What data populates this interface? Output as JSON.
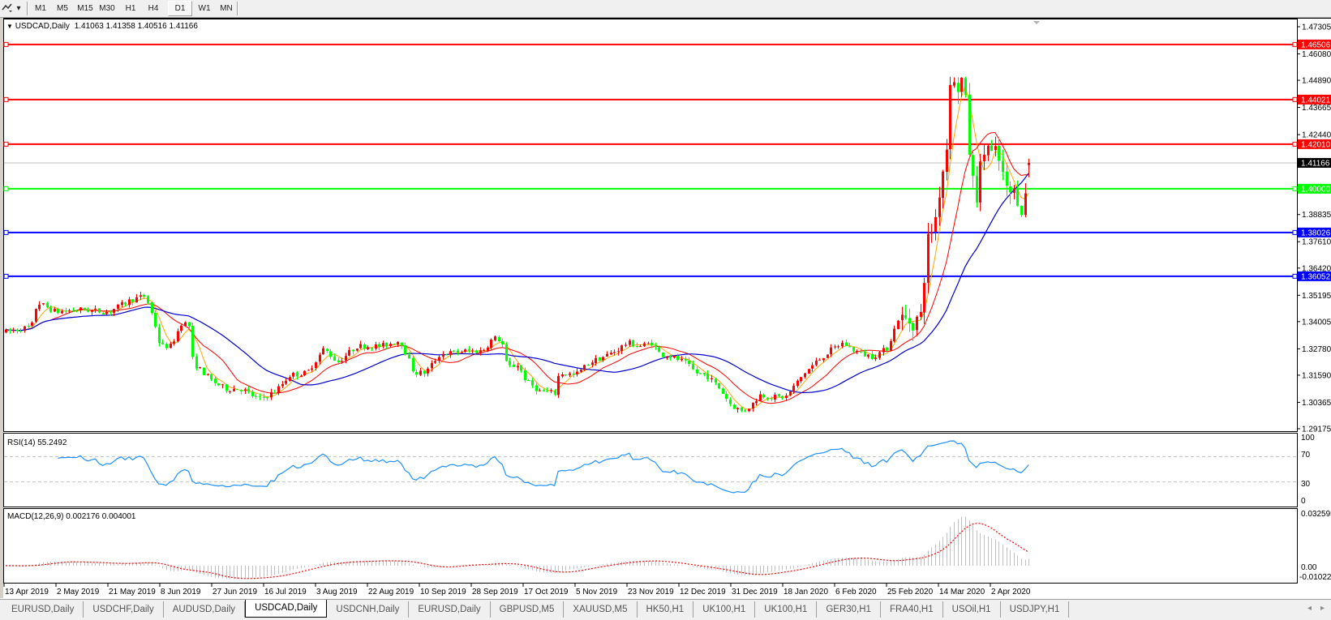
{
  "toolbar": {
    "chart_icon": "chart-tools-icon",
    "timeframes": [
      "M1",
      "M5",
      "M15",
      "M30",
      "H1",
      "H4",
      "D1",
      "W1",
      "MN"
    ],
    "active_timeframe": "D1"
  },
  "header": {
    "symbol": "USDCAD,Daily",
    "ohlc": "1.41063 1.41358 1.40516 1.41166"
  },
  "rsi": {
    "label": "RSI(14) 55.2492",
    "axis": [
      "100",
      "70",
      "30",
      "0"
    ],
    "line_color": "#1e90ff"
  },
  "macd": {
    "label": "MACD(12,26,9) 0.002176 0.004001",
    "axis_top": "0.032595",
    "axis_zero": "0.00",
    "axis_bottom": "-0.010227",
    "range": [
      -0.010227,
      0.032595
    ]
  },
  "colors": {
    "bull": "#ff0000",
    "bear": "#00ff00",
    "ma_fast": "#ffa500",
    "ma_mid": "#ff0000",
    "ma_slow": "#0000cc",
    "background": "#ffffff"
  },
  "chart_data": {
    "type": "candlestick",
    "symbol": "USDCAD",
    "timeframe": "Daily",
    "last_bar": {
      "open": 1.41063,
      "high": 1.41358,
      "low": 1.40516,
      "close": 1.41166
    },
    "ylim": [
      1.29175,
      1.47305
    ],
    "y_ticks": [
      "1.47305",
      "1.46080",
      "1.44890",
      "1.43665",
      "1.42440",
      "1.38835",
      "1.37610",
      "1.36420",
      "1.35195",
      "1.34005",
      "1.32780",
      "1.31590",
      "1.30365",
      "1.29175"
    ],
    "x_ticks": [
      "13 Apr 2019",
      "2 May 2019",
      "21 May 2019",
      "8 Jun 2019",
      "27 Jun 2019",
      "16 Jul 2019",
      "3 Aug 2019",
      "22 Aug 2019",
      "10 Sep 2019",
      "28 Sep 2019",
      "17 Oct 2019",
      "5 Nov 2019",
      "23 Nov 2019",
      "12 Dec 2019",
      "31 Dec 2019",
      "18 Jan 2020",
      "6 Feb 2020",
      "25 Feb 2020",
      "14 Mar 2020",
      "2 Apr 2020"
    ],
    "current_price": {
      "value": 1.41166,
      "label": "1.41166"
    },
    "levels": [
      {
        "value": 1.46506,
        "label": "1.46506",
        "color": "#ff0000"
      },
      {
        "value": 1.44021,
        "label": "1.44021",
        "color": "#ff0000"
      },
      {
        "value": 1.4201,
        "label": "1.42010",
        "color": "#ff0000"
      },
      {
        "value": 1.4,
        "label": "1.40000",
        "color": "#00ff00"
      },
      {
        "value": 1.38026,
        "label": "1.38026",
        "color": "#0000ff"
      },
      {
        "value": 1.36052,
        "label": "1.36052",
        "color": "#0000ff"
      }
    ],
    "close_path": [
      [
        "13 Apr 2019",
        1.3353
      ],
      [
        "23 Apr 2019",
        1.3378
      ],
      [
        "25 Apr 2019",
        1.3488
      ],
      [
        "2 May 2019",
        1.3444
      ],
      [
        "11 May 2019",
        1.3455
      ],
      [
        "21 May 2019",
        1.3444
      ],
      [
        "29 May 2019",
        1.3499
      ],
      [
        "3 Jun 2019",
        1.3517
      ],
      [
        "6 Jun 2019",
        1.34
      ],
      [
        "8 Jun 2019",
        1.329
      ],
      [
        "12 Jun 2019",
        1.329
      ],
      [
        "16 Jun 2019",
        1.34
      ],
      [
        "19 Jun 2019",
        1.3378
      ],
      [
        "20 Jun 2019",
        1.3217
      ],
      [
        "27 Jun 2019",
        1.3133
      ],
      [
        "2 Jul 2019",
        1.3097
      ],
      [
        "8 Jul 2019",
        1.3097
      ],
      [
        "14 Jul 2019",
        1.3049
      ],
      [
        "20 Jul 2019",
        1.3086
      ],
      [
        "25 Jul 2019",
        1.3159
      ],
      [
        "31 Jul 2019",
        1.317
      ],
      [
        "6 Aug 2019",
        1.3279
      ],
      [
        "11 Aug 2019",
        1.3217
      ],
      [
        "18 Aug 2019",
        1.329
      ],
      [
        "27 Aug 2019",
        1.329
      ],
      [
        "3 Sep 2019",
        1.3316
      ],
      [
        "8 Sep 2019",
        1.317
      ],
      [
        "12 Sep 2019",
        1.317
      ],
      [
        "17 Sep 2019",
        1.3254
      ],
      [
        "26 Sep 2019",
        1.3268
      ],
      [
        "2 Oct 2019",
        1.3268
      ],
      [
        "6 Oct 2019",
        1.3327
      ],
      [
        "9 Oct 2019",
        1.3316
      ],
      [
        "11 Oct 2019",
        1.3195
      ],
      [
        "15 Oct 2019",
        1.3206
      ],
      [
        "18 Oct 2019",
        1.3133
      ],
      [
        "23 Oct 2019",
        1.3086
      ],
      [
        "29 Oct 2019",
        1.3078
      ],
      [
        "30 Oct 2019",
        1.317
      ],
      [
        "5 Nov 2019",
        1.3159
      ],
      [
        "10 Nov 2019",
        1.3217
      ],
      [
        "15 Nov 2019",
        1.3243
      ],
      [
        "19 Nov 2019",
        1.3268
      ],
      [
        "23 Nov 2019",
        1.3305
      ],
      [
        "28 Nov 2019",
        1.329
      ],
      [
        "2 Dec 2019",
        1.3305
      ],
      [
        "5 Dec 2019",
        1.3254
      ],
      [
        "9 Dec 2019",
        1.3243
      ],
      [
        "14 Dec 2019",
        1.3217
      ],
      [
        "18 Dec 2019",
        1.317
      ],
      [
        "22 Dec 2019",
        1.3159
      ],
      [
        "27 Dec 2019",
        1.3097
      ],
      [
        "31 Dec 2019",
        1.3024
      ],
      [
        "4 Jan 2020",
        1.2994
      ],
      [
        "7 Jan 2020",
        1.3024
      ],
      [
        "10 Jan 2020",
        1.3071
      ],
      [
        "14 Jan 2020",
        1.306
      ],
      [
        "19 Jan 2020",
        1.306
      ],
      [
        "22 Jan 2020",
        1.3108
      ],
      [
        "26 Jan 2020",
        1.317
      ],
      [
        "30 Jan 2020",
        1.3217
      ],
      [
        "4 Feb 2020",
        1.3268
      ],
      [
        "9 Feb 2020",
        1.3305
      ],
      [
        "12 Feb 2020",
        1.3279
      ],
      [
        "16 Feb 2020",
        1.3254
      ],
      [
        "20 Feb 2020",
        1.3243
      ],
      [
        "25 Feb 2020",
        1.3279
      ],
      [
        "27 Feb 2020",
        1.3342
      ],
      [
        "29 Feb 2020",
        1.3415
      ],
      [
        "5 Mar 2020",
        1.34
      ],
      [
        "8 Mar 2020",
        1.3425
      ],
      [
        "9 Mar 2020",
        1.3608
      ],
      [
        "10 Mar 2020",
        1.3755
      ],
      [
        "13 Mar 2020",
        1.3875
      ],
      [
        "14 Mar 2020",
        1.3974
      ],
      [
        "17 Mar 2020",
        1.4193
      ],
      [
        "18 Mar 2020",
        1.4522
      ],
      [
        "19 Mar 2020",
        1.446
      ],
      [
        "22 Mar 2020",
        1.446
      ],
      [
        "23 Mar 2020",
        1.4533
      ],
      [
        "24 Mar 2020",
        1.4339
      ],
      [
        "26 Mar 2020",
        1.4047
      ],
      [
        "28 Mar 2020",
        1.3974
      ],
      [
        "30 Mar 2020",
        1.4157
      ],
      [
        "1 Apr 2020",
        1.4193
      ],
      [
        "3 Apr 2020",
        1.4131
      ],
      [
        "4 Apr 2020",
        1.4168
      ],
      [
        "6 Apr 2020",
        1.4084
      ],
      [
        "8 Apr 2020",
        1.3974
      ],
      [
        "10 Apr 2020",
        1.3985
      ],
      [
        "12 Apr 2020",
        1.3963
      ],
      [
        "14 Apr 2020",
        1.389
      ],
      [
        "16 Apr 2020",
        1.41166
      ]
    ]
  },
  "tabs": [
    {
      "label": "EURUSD,Daily"
    },
    {
      "label": "USDCHF,Daily"
    },
    {
      "label": "AUDUSD,Daily"
    },
    {
      "label": "USDCAD,Daily",
      "active": true
    },
    {
      "label": "USDCNH,Daily"
    },
    {
      "label": "EURUSD,Daily"
    },
    {
      "label": "GBPUSD,M5"
    },
    {
      "label": "XAUUSD,M5"
    },
    {
      "label": "HK50,H1"
    },
    {
      "label": "UK100,H1"
    },
    {
      "label": "UK100,H1"
    },
    {
      "label": "GER30,H1"
    },
    {
      "label": "FRA40,H1"
    },
    {
      "label": "USOil,H1"
    },
    {
      "label": "USDJPY,H1"
    }
  ]
}
